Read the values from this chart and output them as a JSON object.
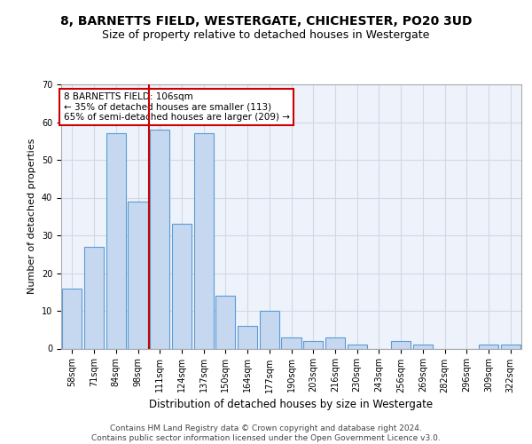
{
  "title1": "8, BARNETTS FIELD, WESTERGATE, CHICHESTER, PO20 3UD",
  "title2": "Size of property relative to detached houses in Westergate",
  "xlabel": "Distribution of detached houses by size in Westergate",
  "ylabel": "Number of detached properties",
  "bar_labels": [
    "58sqm",
    "71sqm",
    "84sqm",
    "98sqm",
    "111sqm",
    "124sqm",
    "137sqm",
    "150sqm",
    "164sqm",
    "177sqm",
    "190sqm",
    "203sqm",
    "216sqm",
    "230sqm",
    "243sqm",
    "256sqm",
    "269sqm",
    "282sqm",
    "296sqm",
    "309sqm",
    "322sqm"
  ],
  "bar_values": [
    16,
    27,
    57,
    39,
    58,
    33,
    57,
    14,
    6,
    10,
    3,
    2,
    3,
    1,
    0,
    2,
    1,
    0,
    0,
    1,
    1
  ],
  "bar_color": "#c5d8f0",
  "bar_edge_color": "#5b9bd5",
  "grid_color": "#d0d8e8",
  "background_color": "#eef2fa",
  "vline_x": 3.5,
  "vline_color": "#cc0000",
  "annotation_text": "8 BARNETTS FIELD: 106sqm\n← 35% of detached houses are smaller (113)\n65% of semi-detached houses are larger (209) →",
  "annotation_box_color": "#ffffff",
  "annotation_box_edge": "#cc0000",
  "ylim": [
    0,
    70
  ],
  "yticks": [
    0,
    10,
    20,
    30,
    40,
    50,
    60,
    70
  ],
  "footer": "Contains HM Land Registry data © Crown copyright and database right 2024.\nContains public sector information licensed under the Open Government Licence v3.0.",
  "title1_fontsize": 10,
  "title2_fontsize": 9,
  "xlabel_fontsize": 8.5,
  "ylabel_fontsize": 8,
  "tick_fontsize": 7,
  "annotation_fontsize": 7.5,
  "footer_fontsize": 6.5
}
